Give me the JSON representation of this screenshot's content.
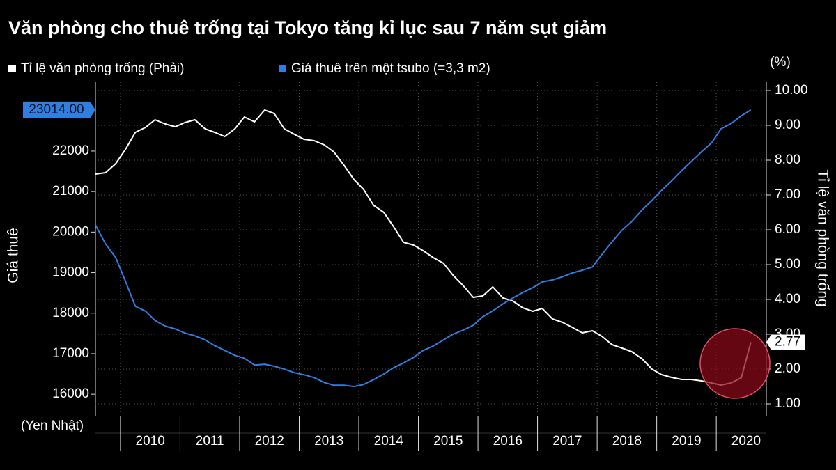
{
  "chart_data": {
    "type": "line",
    "title": "Văn phòng cho thuê trống tại Tokyo tăng kỉ lục sau 7 năm sụt giảm",
    "y_label": "Giá thuê",
    "y_unit": "(Yen Nhật)",
    "y2_label": "Tỉ lệ văn phòng trống",
    "y2_unit": "(%)",
    "x": [
      2009.58,
      2009.75,
      2009.92,
      2010.08,
      2010.25,
      2010.42,
      2010.58,
      2010.75,
      2010.92,
      2011.08,
      2011.25,
      2011.42,
      2011.58,
      2011.75,
      2011.92,
      2012.08,
      2012.25,
      2012.42,
      2012.58,
      2012.75,
      2012.92,
      2013.08,
      2013.25,
      2013.42,
      2013.58,
      2013.75,
      2013.92,
      2014.08,
      2014.25,
      2014.42,
      2014.58,
      2014.75,
      2014.92,
      2015.08,
      2015.25,
      2015.42,
      2015.58,
      2015.75,
      2015.92,
      2016.08,
      2016.25,
      2016.42,
      2016.58,
      2016.75,
      2016.92,
      2017.08,
      2017.25,
      2017.42,
      2017.58,
      2017.75,
      2017.92,
      2018.08,
      2018.25,
      2018.42,
      2018.58,
      2018.75,
      2018.92,
      2019.08,
      2019.25,
      2019.42,
      2019.58,
      2019.75,
      2019.92,
      2020.08,
      2020.25,
      2020.42,
      2020.58
    ],
    "series": [
      {
        "name": "Tỉ lệ văn phòng trống (Phải)",
        "color": "#ffffff",
        "axis": "y2",
        "values": [
          7.6,
          7.64,
          7.9,
          8.3,
          8.8,
          8.94,
          9.16,
          9.04,
          8.96,
          9.08,
          9.16,
          8.9,
          8.8,
          8.68,
          8.9,
          9.24,
          9.1,
          9.44,
          9.34,
          8.9,
          8.74,
          8.6,
          8.56,
          8.44,
          8.24,
          7.86,
          7.44,
          7.16,
          6.7,
          6.5,
          6.1,
          5.64,
          5.56,
          5.4,
          5.2,
          5.04,
          4.7,
          4.4,
          4.06,
          4.1,
          4.36,
          4.04,
          3.96,
          3.76,
          3.66,
          3.74,
          3.44,
          3.34,
          3.2,
          3.04,
          3.1,
          2.94,
          2.7,
          2.6,
          2.5,
          2.3,
          2.0,
          1.84,
          1.76,
          1.7,
          1.7,
          1.66,
          1.6,
          1.54,
          1.6,
          1.75,
          2.77
        ]
      },
      {
        "name": "Giá thuê trên một tsubo (=3,3 m2)",
        "color": "#2f7fe0",
        "axis": "y",
        "values": [
          20175,
          19710,
          19370,
          18800,
          18170,
          18050,
          17820,
          17680,
          17610,
          17510,
          17440,
          17340,
          17200,
          17080,
          16960,
          16890,
          16720,
          16740,
          16690,
          16620,
          16530,
          16480,
          16410,
          16290,
          16220,
          16220,
          16190,
          16240,
          16360,
          16500,
          16650,
          16770,
          16910,
          17080,
          17190,
          17340,
          17480,
          17580,
          17700,
          17910,
          18060,
          18230,
          18370,
          18510,
          18630,
          18770,
          18820,
          18900,
          18990,
          19060,
          19140,
          19450,
          19760,
          20050,
          20260,
          20540,
          20780,
          21030,
          21260,
          21520,
          21740,
          21980,
          22200,
          22550,
          22680,
          22870,
          23014
        ],
        "value_labels": {
          "66": "23014.00"
        }
      }
    ],
    "xlim": [
      2009.58,
      2020.84
    ],
    "xticks": [
      2010,
      2011,
      2012,
      2013,
      2014,
      2015,
      2016,
      2017,
      2018,
      2019,
      2020
    ],
    "ylim": [
      15470,
      23700
    ],
    "yticks": [
      16000,
      17000,
      18000,
      19000,
      20000,
      21000,
      22000
    ],
    "y2lim": [
      0.66,
      10.24
    ],
    "y2ticks": [
      {
        "value": 1,
        "label": "1.00"
      },
      {
        "value": 2,
        "label": "2.00"
      },
      {
        "value": 3,
        "label": "3.00"
      },
      {
        "value": 4,
        "label": "4.00"
      },
      {
        "value": 5,
        "label": "5.00"
      },
      {
        "value": 6,
        "label": "6.00"
      },
      {
        "value": 7,
        "label": "7.00"
      },
      {
        "value": 8,
        "label": "8.00"
      },
      {
        "value": 9,
        "label": "9.00"
      },
      {
        "value": 10,
        "label": "10.00"
      }
    ],
    "grid": true,
    "legend": "top"
  }
}
